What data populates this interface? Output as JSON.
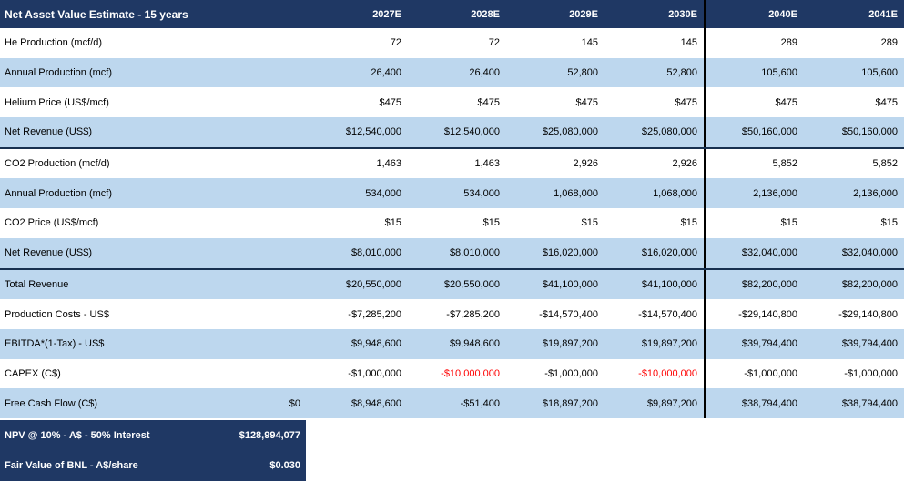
{
  "table": {
    "title": "Net Asset Value Estimate - 15 years",
    "columns": [
      "2027E",
      "2028E",
      "2029E",
      "2030E",
      "2040E",
      "2041E"
    ],
    "rows": [
      {
        "label": "He Production (mcf/d)",
        "shaded": false,
        "values": [
          "72",
          "72",
          "145",
          "145",
          "289",
          "289"
        ]
      },
      {
        "label": "Annual Production (mcf)",
        "shaded": true,
        "values": [
          "26,400",
          "26,400",
          "52,800",
          "52,800",
          "105,600",
          "105,600"
        ]
      },
      {
        "label": "Helium Price (US$/mcf)",
        "shaded": false,
        "values": [
          "$475",
          "$475",
          "$475",
          "$475",
          "$475",
          "$475"
        ]
      },
      {
        "label": "Net Revenue (US$)",
        "shaded": true,
        "section_break_after": true,
        "values": [
          "$12,540,000",
          "$12,540,000",
          "$25,080,000",
          "$25,080,000",
          "$50,160,000",
          "$50,160,000"
        ]
      },
      {
        "label": "CO2 Production (mcf/d)",
        "shaded": false,
        "values": [
          "1,463",
          "1,463",
          "2,926",
          "2,926",
          "5,852",
          "5,852"
        ]
      },
      {
        "label": "Annual Production (mcf)",
        "shaded": true,
        "values": [
          "534,000",
          "534,000",
          "1,068,000",
          "1,068,000",
          "2,136,000",
          "2,136,000"
        ]
      },
      {
        "label": "CO2 Price (US$/mcf)",
        "shaded": false,
        "values": [
          "$15",
          "$15",
          "$15",
          "$15",
          "$15",
          "$15"
        ]
      },
      {
        "label": "Net Revenue (US$)",
        "shaded": true,
        "section_break_after": true,
        "values": [
          "$8,010,000",
          "$8,010,000",
          "$16,020,000",
          "$16,020,000",
          "$32,040,000",
          "$32,040,000"
        ]
      },
      {
        "label": "Total Revenue",
        "shaded": true,
        "values": [
          "$20,550,000",
          "$20,550,000",
          "$41,100,000",
          "$41,100,000",
          "$82,200,000",
          "$82,200,000"
        ]
      },
      {
        "label": "Production Costs - US$",
        "shaded": false,
        "values": [
          "-$7,285,200",
          "-$7,285,200",
          "-$14,570,400",
          "-$14,570,400",
          "-$29,140,800",
          "-$29,140,800"
        ]
      },
      {
        "label": "EBITDA*(1-Tax) - US$",
        "shaded": true,
        "values": [
          "$9,948,600",
          "$9,948,600",
          "$19,897,200",
          "$19,897,200",
          "$39,794,400",
          "$39,794,400"
        ]
      },
      {
        "label": "CAPEX (C$)",
        "shaded": false,
        "red_indices": [
          1,
          3
        ],
        "values": [
          "-$1,000,000",
          "-$10,000,000",
          "-$1,000,000",
          "-$10,000,000",
          "-$1,000,000",
          "-$1,000,000"
        ]
      },
      {
        "label": "Free Cash Flow (C$)",
        "shaded": true,
        "label_value": "$0",
        "values": [
          "$8,948,600",
          "-$51,400",
          "$18,897,200",
          "$9,897,200",
          "$38,794,400",
          "$38,794,400"
        ]
      }
    ],
    "summary_rows": [
      {
        "label": "NPV @ 10% - A$ - 50% Interest",
        "value": "$128,994,077"
      },
      {
        "label": "Fair Value of BNL - A$/share",
        "value": "$0.030"
      }
    ]
  },
  "colors": {
    "header_bg": "#1F3864",
    "shaded_row_bg": "#BDD7EE",
    "negative_highlight": "#FF0000",
    "section_line": "#17304F",
    "year_divider": "#000000",
    "text": "#000000",
    "header_text": "#FFFFFF"
  }
}
